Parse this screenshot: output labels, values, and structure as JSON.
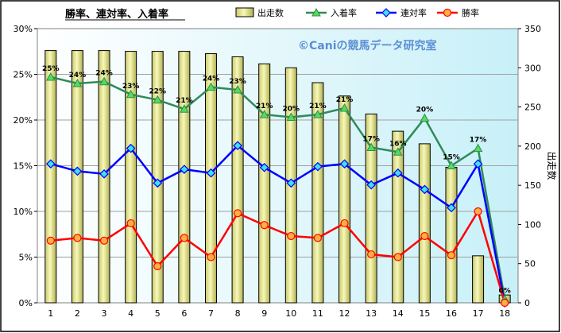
{
  "chart_data": {
    "type": "bar+line",
    "title": "勝率、連対率、入着率",
    "watermark": "©Caniの競馬データ研究室",
    "categories": [
      "1",
      "2",
      "3",
      "4",
      "5",
      "6",
      "7",
      "8",
      "9",
      "10",
      "11",
      "12",
      "13",
      "14",
      "15",
      "16",
      "17",
      "18"
    ],
    "left_axis": {
      "ylim": [
        0,
        30
      ],
      "ticks": [
        "0%",
        "5%",
        "10%",
        "15%",
        "20%",
        "25%",
        "30%"
      ]
    },
    "right_axis": {
      "label": "出走数",
      "ylim": [
        0,
        350
      ],
      "ticks": [
        "0",
        "50",
        "100",
        "150",
        "200",
        "250",
        "300",
        "350"
      ]
    },
    "bars": {
      "name": "出走数",
      "values": [
        322,
        322,
        322,
        321,
        321,
        321,
        318,
        314,
        305,
        300,
        281,
        264,
        241,
        219,
        203,
        173,
        60,
        10
      ],
      "color": "#f0f0a0"
    },
    "series": [
      {
        "name": "入着率",
        "color": "#2e8b57",
        "marker": "triangle",
        "values": [
          24.7,
          24.0,
          24.2,
          22.8,
          22.2,
          21.2,
          23.6,
          23.3,
          20.6,
          20.3,
          20.6,
          21.3,
          17.0,
          16.5,
          20.2,
          15.0,
          16.9,
          0.4
        ],
        "labels": [
          "25%",
          "24%",
          "24%",
          "23%",
          "22%",
          "21%",
          "24%",
          "23%",
          "21%",
          "20%",
          "21%",
          "21%",
          "17%",
          "16%",
          "20%",
          "15%",
          "17%",
          "0%"
        ]
      },
      {
        "name": "連対率",
        "color": "#0000ff",
        "marker": "diamond",
        "values": [
          15.2,
          14.4,
          14.1,
          16.9,
          13.1,
          14.6,
          14.2,
          17.2,
          14.8,
          13.1,
          14.9,
          15.2,
          12.9,
          14.2,
          12.4,
          10.4,
          15.2,
          0.0
        ]
      },
      {
        "name": "勝率",
        "color": "#ff0000",
        "marker": "circle",
        "values": [
          6.8,
          7.1,
          6.8,
          8.7,
          4.0,
          7.1,
          5.0,
          9.8,
          8.5,
          7.3,
          7.1,
          8.7,
          5.3,
          5.0,
          7.3,
          5.2,
          10.0,
          0.0
        ]
      }
    ],
    "grid": true,
    "legend_position": "top"
  }
}
